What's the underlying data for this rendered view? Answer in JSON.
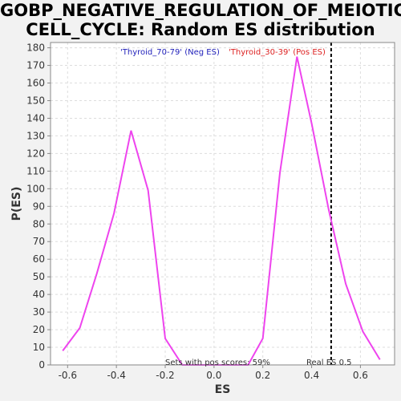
{
  "title": {
    "line1": "GOBP_NEGATIVE_REGULATION_OF_MEIOTIC_",
    "line2": "CELL_CYCLE: Random ES distribution"
  },
  "legend": {
    "neg_label": "'Thyroid_70-79' (Neg ES)",
    "pos_label": "'Thyroid_30-39' (Pos ES)"
  },
  "annotations": {
    "pos_scores": "Sets with pos scores: 59%",
    "real_es": "Real ES 0.5"
  },
  "colors": {
    "curve": "#ee44ee",
    "neg_label": "#2222bb",
    "pos_label": "#dd2222",
    "real_es_line": "#000000",
    "grid": "#dddddd"
  },
  "chart_data": {
    "type": "line",
    "xlabel": "ES",
    "ylabel": "P(ES)",
    "xlim": [
      -0.67,
      0.74
    ],
    "ylim": [
      0,
      183
    ],
    "x_ticks": [
      -0.6,
      -0.4,
      -0.2,
      0.0,
      0.2,
      0.4,
      0.6
    ],
    "x_tick_labels": [
      "-0.6",
      "-0.4",
      "-0.2",
      "0.0",
      "0.2",
      "0.4",
      "0.6"
    ],
    "y_ticks": [
      0,
      10,
      20,
      30,
      40,
      50,
      60,
      70,
      80,
      90,
      100,
      110,
      120,
      130,
      140,
      150,
      160,
      170,
      180
    ],
    "real_es": 0.48,
    "grid": true,
    "series": [
      {
        "x": [
          -0.62,
          -0.55,
          -0.48,
          -0.41,
          -0.34,
          -0.27,
          -0.2,
          -0.13,
          0.14,
          0.2,
          0.27,
          0.34,
          0.4,
          0.47,
          0.54,
          0.61,
          0.68
        ],
        "y": [
          8,
          21,
          52,
          86,
          133,
          99,
          15,
          0,
          0,
          15,
          109,
          175,
          137,
          88,
          46,
          19,
          3
        ]
      }
    ]
  }
}
